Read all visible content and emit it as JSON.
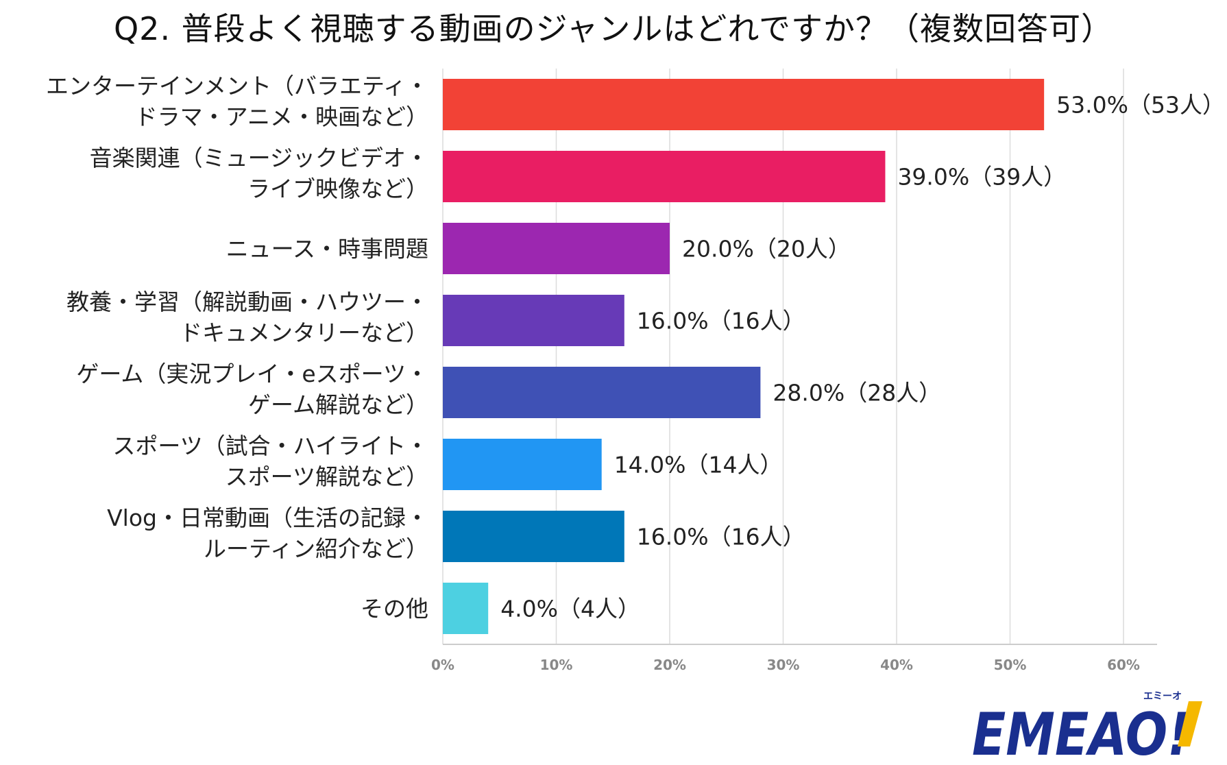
{
  "chart_data": {
    "type": "bar",
    "orientation": "horizontal",
    "title": "Q2. 普段よく視聴する動画のジャンルはどれですか？（複数回答可）",
    "categories": [
      [
        "エンターテインメント（バラエティ・",
        "ドラマ・アニメ・映画など）"
      ],
      [
        "音楽関連（ミュージックビデオ・",
        "ライブ映像など）"
      ],
      [
        "ニュース・時事問題"
      ],
      [
        "教養・学習（解説動画・ハウツー・",
        "ドキュメンタリーなど）"
      ],
      [
        "ゲーム（実況プレイ・eスポーツ・",
        "ゲーム解説など）"
      ],
      [
        "スポーツ（試合・ハイライト・",
        "スポーツ解説など）"
      ],
      [
        "Vlog・日常動画（生活の記録・",
        "ルーティン紹介など）"
      ],
      [
        "その他"
      ]
    ],
    "values": [
      53.0,
      39.0,
      20.0,
      16.0,
      28.0,
      14.0,
      16.0,
      4.0
    ],
    "value_labels": [
      "53.0%（53人）",
      "39.0%（39人）",
      "20.0%（20人）",
      "16.0%（16人）",
      "28.0%（28人）",
      "14.0%（14人）",
      "16.0%（16人）",
      "4.0%（4人）"
    ],
    "colors": [
      "#f24236",
      "#e91e63",
      "#9c27b0",
      "#673ab7",
      "#3f51b5",
      "#2196f3",
      "#0077b8",
      "#4dd0e1"
    ],
    "xticks": [
      "0%",
      "10%",
      "20%",
      "30%",
      "40%",
      "50%",
      "60%"
    ],
    "xlim": [
      0,
      63
    ],
    "grid": true,
    "legend": "none"
  },
  "logo": {
    "text": "EMEAO!",
    "kana": "エミーオ",
    "primary_color": "#1a2f8f",
    "accent_color": "#f5b800"
  }
}
